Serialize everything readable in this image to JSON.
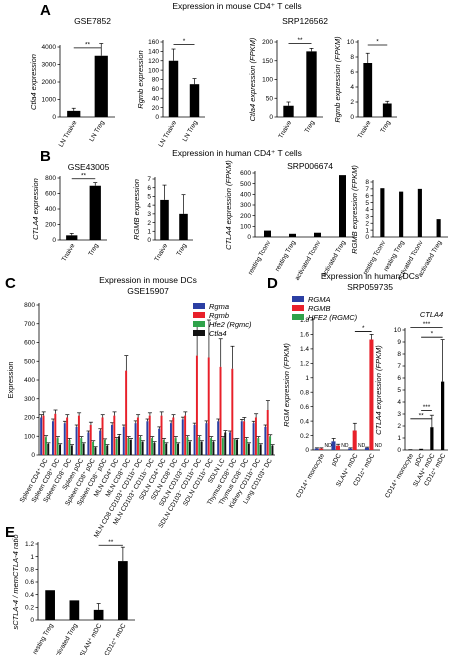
{
  "figure": {
    "labels": [
      "A",
      "B",
      "C",
      "D",
      "E"
    ],
    "sections": {
      "A": "Expression in mouse CD4⁺ T cells",
      "B": "Expression in human CD4⁺ T cells",
      "C": "Expression in mouse DCs",
      "C_sub": "GSE15907",
      "D": "Expression in human DCs",
      "D_sub": "SRP059735"
    },
    "not_detected": "ND",
    "significance": {
      "double": "**",
      "single": "*",
      "triple": "***"
    }
  },
  "colors": {
    "Rgma": "#2b3fa3",
    "Rgmb": "#e8202a",
    "Hfe2": "#2fa24a",
    "Ctla4": "#111111",
    "bar": "#000000"
  },
  "chart_data": [
    {
      "id": "A1",
      "type": "bar",
      "title": "GSE7852",
      "categories": [
        "LN Tnaive",
        "LN Treg"
      ],
      "values": [
        350,
        3500
      ],
      "errors": [
        150,
        700
      ],
      "ylabel": "Ctla4 expression",
      "ylim": [
        0,
        4000
      ],
      "yticks": [
        0,
        1000,
        2000,
        3000,
        4000
      ],
      "significance": "**"
    },
    {
      "id": "A2",
      "type": "bar",
      "title": "",
      "categories": [
        "LN Tnaive",
        "LN Treg"
      ],
      "values": [
        120,
        70
      ],
      "errors": [
        25,
        12
      ],
      "ylabel": "Rgmb expression",
      "ylim": [
        0,
        160
      ],
      "yticks": [
        0,
        20,
        40,
        60,
        80,
        100,
        120,
        140,
        160
      ],
      "significance": "*"
    },
    {
      "id": "A3",
      "type": "bar",
      "title": "SRP126562",
      "categories": [
        "Tnaive",
        "Treg"
      ],
      "values": [
        30,
        175
      ],
      "errors": [
        10,
        8
      ],
      "ylabel": "Ctla4 expression (FPKM)",
      "ylim": [
        0,
        200
      ],
      "yticks": [
        0,
        50,
        100,
        150,
        200
      ],
      "significance": "**"
    },
    {
      "id": "A4",
      "type": "bar",
      "title": "",
      "categories": [
        "Tnaive",
        "Treg"
      ],
      "values": [
        7.2,
        1.8
      ],
      "errors": [
        1.3,
        0.3
      ],
      "ylabel": "Rgmb expression (FPKM)",
      "ylim": [
        0,
        10
      ],
      "yticks": [
        0,
        2,
        4,
        6,
        8,
        10
      ],
      "significance": "*"
    },
    {
      "id": "B1",
      "type": "bar",
      "title": "GSE43005",
      "categories": [
        "Tnaive",
        "Treg"
      ],
      "values": [
        60,
        700
      ],
      "errors": [
        25,
        40
      ],
      "ylabel": "CTLA4 expression",
      "ylim": [
        0,
        800
      ],
      "yticks": [
        0,
        200,
        400,
        600,
        800
      ],
      "significance": "**"
    },
    {
      "id": "B2",
      "type": "bar",
      "title": "",
      "categories": [
        "Tnaive",
        "Treg"
      ],
      "values": [
        4.6,
        3.0
      ],
      "errors": [
        1.7,
        2.2
      ],
      "ylabel": "RGMB expression",
      "ylim": [
        0,
        7
      ],
      "yticks": [
        0,
        1,
        2,
        3,
        4,
        5,
        6,
        7
      ],
      "significance": ""
    },
    {
      "id": "B3",
      "type": "bar",
      "title": "SRP006674",
      "categories": [
        "resting Tconv",
        "resting Treg",
        "activated Tconv",
        "activated Treg"
      ],
      "values": [
        60,
        30,
        40,
        580
      ],
      "errors": [
        0,
        0,
        0,
        0
      ],
      "ylabel": "CTLA4 expression (FPKM)",
      "ylim": [
        0,
        600
      ],
      "yticks": [
        0,
        100,
        200,
        300,
        400,
        500,
        600
      ],
      "significance": ""
    },
    {
      "id": "B4",
      "type": "bar",
      "title": "",
      "categories": [
        "resting Tconv",
        "resting Treg",
        "activated Tconv",
        "activated Treg"
      ],
      "values": [
        7.1,
        6.6,
        7.0,
        2.6
      ],
      "errors": [
        0,
        0,
        0,
        0
      ],
      "ylabel": "RGMB expression (FPKM)",
      "ylim": [
        0,
        8
      ],
      "yticks": [
        0,
        1,
        2,
        3,
        4,
        5,
        6,
        7,
        8
      ],
      "significance": ""
    },
    {
      "id": "C",
      "type": "bar",
      "title": "Expression in mouse DCs",
      "subtitle": "GSE15907",
      "categories": [
        "Spleen CD4⁺ DC",
        "Spleen CD8⁺ DC",
        "Spleen CD8⁻ DC",
        "Spleen pDC",
        "Spleen CD8⁺ pDC",
        "Spleen CD8⁻ pDC",
        "MLN CD4⁺ DC",
        "MLN CD8⁺ DC",
        "MLN CD8 CD103⁺ CD11b⁺ DC",
        "MLN CD103⁺ CD11b⁻ DC",
        "SDLN CD4⁺ DC",
        "SDLN CD8⁺ DC",
        "SDLN CD103⁺ DC",
        "SDLN CD103⁻ CD11b⁺ DC",
        "SDLN CD11b⁺ DC",
        "SDLN LC",
        "Thymus CD8⁺ DC",
        "Thymus CD8⁻ DC",
        "Kidney CD11b⁺ DC",
        "Lung CD103⁺ DC"
      ],
      "series": [
        {
          "name": "Rgma",
          "values": [
            200,
            180,
            170,
            150,
            120,
            130,
            160,
            150,
            170,
            180,
            140,
            170,
            190,
            160,
            170,
            180,
            120,
            180,
            170,
            150
          ],
          "errors": [
            15,
            12,
            10,
            10,
            8,
            10,
            12,
            10,
            12,
            12,
            10,
            12,
            12,
            10,
            12,
            12,
            8,
            10,
            10,
            10
          ]
        },
        {
          "name": "Rgmb",
          "values": [
            210,
            220,
            200,
            210,
            160,
            200,
            210,
            450,
            200,
            210,
            210,
            200,
            210,
            530,
            520,
            470,
            460,
            180,
            200,
            240
          ],
          "errors": [
            20,
            20,
            15,
            15,
            15,
            15,
            20,
            80,
            15,
            15,
            20,
            15,
            20,
            180,
            200,
            150,
            120,
            20,
            20,
            50
          ]
        },
        {
          "name": "Hfe2 (Rgmc)",
          "values": [
            95,
            90,
            80,
            90,
            70,
            80,
            85,
            90,
            95,
            90,
            80,
            90,
            95,
            95,
            90,
            90,
            80,
            85,
            90,
            100
          ],
          "errors": [
            8,
            8,
            8,
            8,
            6,
            6,
            8,
            8,
            8,
            8,
            8,
            8,
            8,
            8,
            8,
            8,
            6,
            8,
            8,
            8
          ]
        },
        {
          "name": "Ctla4",
          "values": [
            60,
            55,
            50,
            60,
            40,
            50,
            100,
            80,
            70,
            65,
            60,
            60,
            70,
            70,
            70,
            120,
            80,
            60,
            55,
            50
          ],
          "errors": [
            5,
            5,
            5,
            5,
            4,
            5,
            10,
            8,
            6,
            6,
            5,
            5,
            6,
            6,
            6,
            10,
            8,
            5,
            5,
            5
          ]
        }
      ],
      "ylabel": "Expression",
      "ylim": [
        0,
        800
      ],
      "yticks": [
        0,
        100,
        200,
        300,
        400,
        500,
        600,
        700,
        800
      ],
      "legend": "top-right"
    },
    {
      "id": "D1",
      "type": "bar",
      "title": "",
      "categories": [
        "CD14⁺ monocyte",
        "pDC",
        "SLAN⁺ mDC",
        "CD1c⁺ mDC"
      ],
      "series": [
        {
          "name": "RGMA",
          "values": [
            0.02,
            0.12,
            0.02,
            0.03
          ],
          "errors": [
            0.01,
            0.04,
            0.01,
            0.01
          ]
        },
        {
          "name": "RGMB",
          "values": [
            0.02,
            0.06,
            0.27,
            1.53
          ],
          "errors": [
            0.01,
            0.02,
            0.1,
            0.07
          ]
        },
        {
          "name": "HFE2 (RGMC)",
          "values": [
            0,
            0,
            0,
            0
          ],
          "errors": [
            0,
            0,
            0,
            0
          ]
        }
      ],
      "nd": "ND",
      "ylabel": "RGM expression (FPKM)",
      "ylim": [
        0,
        1.8
      ],
      "yticks": [
        0,
        0.2,
        0.4,
        0.6,
        0.8,
        1.0,
        1.2,
        1.4,
        1.6,
        1.8
      ],
      "significance": "*",
      "legend": "top-left"
    },
    {
      "id": "D2",
      "type": "bar",
      "title": "CTLA4",
      "categories": [
        "CD14⁺ monocyte",
        "pDC",
        "SLAN⁺ mDC",
        "CD1c⁺ mDC"
      ],
      "values": [
        0.02,
        0.05,
        1.9,
        5.7
      ],
      "errors": [
        0.01,
        0.02,
        1.0,
        3.5
      ],
      "ylabel": "CTLA4 expression (FPKM)",
      "ylim": [
        0,
        10
      ],
      "yticks": [
        0,
        1,
        2,
        3,
        4,
        5,
        6,
        7,
        8,
        9,
        10
      ],
      "significance": "**/***"
    },
    {
      "id": "E",
      "type": "bar",
      "title": "",
      "categories": [
        "resting Treg",
        "activated Treg",
        "SLAN⁺ mDC",
        "CD1c⁺ mDC"
      ],
      "values": [
        0.47,
        0.31,
        0.16,
        0.93
      ],
      "errors": [
        0,
        0,
        0.1,
        0.22
      ],
      "ylabel": "sCTLA-4 / memCTLA-4 ratio",
      "ylim": [
        0,
        1.2
      ],
      "yticks": [
        0,
        0.2,
        0.4,
        0.6,
        0.8,
        1.0,
        1.2
      ],
      "significance": "**"
    }
  ]
}
